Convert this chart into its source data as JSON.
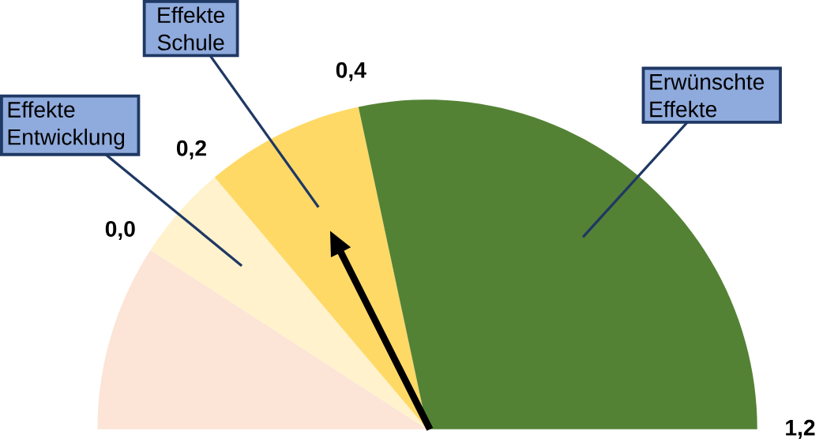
{
  "chart_data": {
    "type": "pie",
    "categories": [
      null,
      "Effekte Entwicklung",
      "Effekte Schule",
      "Erwünschte Effekte"
    ],
    "values": [
      18.3,
      9.4,
      15.6,
      56.7
    ],
    "colors": [
      "#fce4d6",
      "#fff2cc",
      "#ffd966",
      "#548235"
    ],
    "needle": "Effekte Schule",
    "annotations": [
      "0,0",
      "0,2",
      "0,4",
      "1,2"
    ]
  }
}
